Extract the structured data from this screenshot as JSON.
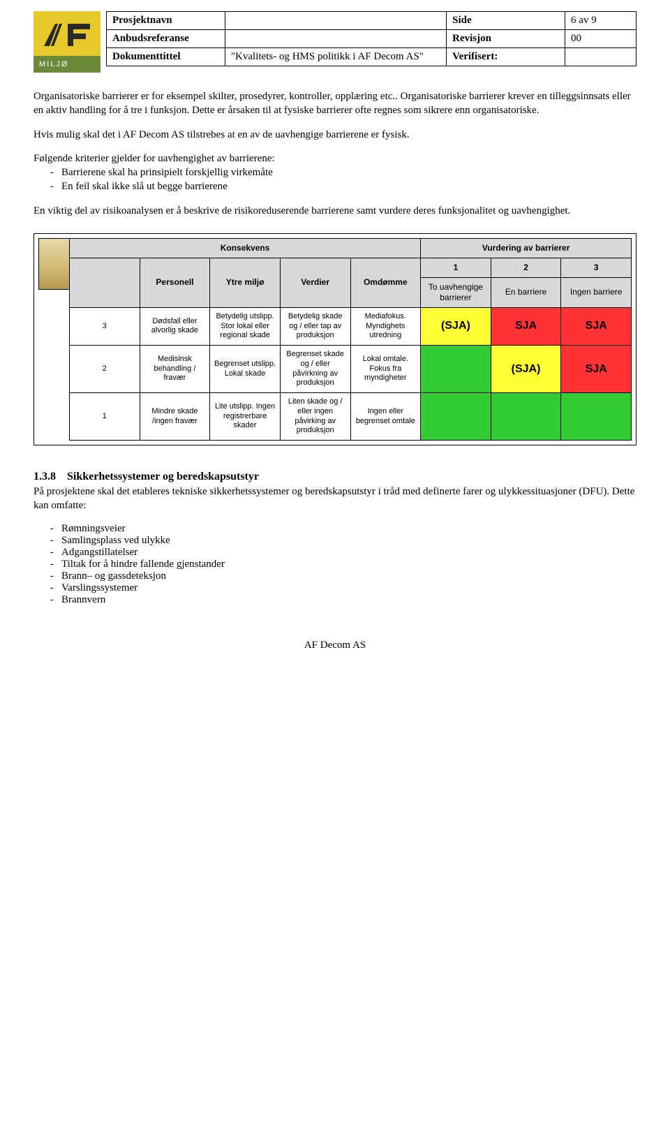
{
  "header": {
    "logo_text": "MILJØ",
    "rows": [
      {
        "label": "Prosjektnavn",
        "value": "",
        "meta_label": "Side",
        "meta_value": "6 av 9"
      },
      {
        "label": "Anbudsreferanse",
        "value": "",
        "meta_label": "Revisjon",
        "meta_value": "00"
      },
      {
        "label": "Dokumenttittel",
        "value": "\"Kvalitets- og HMS politikk i AF Decom AS\"",
        "meta_label": "Verifisert:",
        "meta_value": ""
      }
    ]
  },
  "paragraphs": {
    "p1": "Organisatoriske barrierer er for eksempel skilter, prosedyrer, kontroller, opplæring etc.. Organisatoriske barrierer krever en tilleggsinnsats eller en aktiv handling for å tre i funksjon. Dette er årsaken til at fysiske barrierer ofte regnes som sikrere enn organisatoriske.",
    "p2": "Hvis mulig skal det i AF Decom AS tilstrebes at en av de uavhengige barrierene er fysisk.",
    "p3_intro": "Følgende kriterier gjelder for uavhengighet av barrierene:",
    "p3_items": [
      "Barrierene skal ha prinsipielt forskjellig virkemåte",
      "En feil skal ikke slå ut begge barrierene"
    ],
    "p4": "En viktig del av risikoanalysen er å beskrive de risikoreduserende barrierene samt vurdere deres funksjonalitet og uavhengighet."
  },
  "risk_matrix": {
    "colors": {
      "gray": "#d8d8d8",
      "green": "#33cc33",
      "yellow": "#ffff33",
      "red": "#ff3333",
      "white": "#ffffff"
    },
    "konsekvens_label": "Konsekvens",
    "vurdering_label": "Vurdering av barrierer",
    "col_headers": [
      "Personell",
      "Ytre miljø",
      "Verdier",
      "Omdømme"
    ],
    "barrier_nums": [
      "1",
      "2",
      "3"
    ],
    "barrier_labels": [
      "To uavhengige barrierer",
      "En barriere",
      "Ingen barriere"
    ],
    "rows": [
      {
        "level": "3",
        "cells": [
          "Dødsfall eller alvorlig skade",
          "Betydelig utslipp. Stor lokal eller regional skade",
          "Betydelig skade og / eller tap av produksjon",
          "Mediafokus. Myndighets utredning"
        ],
        "barriers": [
          {
            "text": "(SJA)",
            "color": "yellow"
          },
          {
            "text": "SJA",
            "color": "red"
          },
          {
            "text": "SJA",
            "color": "red"
          }
        ]
      },
      {
        "level": "2",
        "cells": [
          "Medisinsk behandling / fravær",
          "Begrenset utslipp. Lokal skade",
          "Begrenset skade og / eller påvirkning av produksjon",
          "Lokal omtale. Fokus fra myndigheter"
        ],
        "barriers": [
          {
            "text": "",
            "color": "green"
          },
          {
            "text": "(SJA)",
            "color": "yellow"
          },
          {
            "text": "SJA",
            "color": "red"
          }
        ]
      },
      {
        "level": "1",
        "cells": [
          "Mindre skade /ingen fravær",
          "Lite utslipp. Ingen registrerbare skader",
          "Liten skade og / eller ingen påvirking av produksjon",
          "Ingen eller begrenset omtale"
        ],
        "barriers": [
          {
            "text": "",
            "color": "green"
          },
          {
            "text": "",
            "color": "green"
          },
          {
            "text": "",
            "color": "green"
          }
        ]
      }
    ]
  },
  "section": {
    "number": "1.3.8",
    "title": "Sikkerhetssystemer og beredskapsutstyr",
    "intro": "På prosjektene skal det etableres tekniske sikkerhetssystemer og beredskapsutstyr i tråd med definerte farer og ulykkessituasjoner (DFU). Dette kan omfatte:",
    "items": [
      "Rømningsveier",
      "Samlingsplass ved ulykke",
      "Adgangstillatelser",
      "Tiltak for å hindre fallende gjenstander",
      "Brann– og gassdeteksjon",
      "Varslingssystemer",
      "Brannvern"
    ]
  },
  "footer": "AF Decom AS"
}
